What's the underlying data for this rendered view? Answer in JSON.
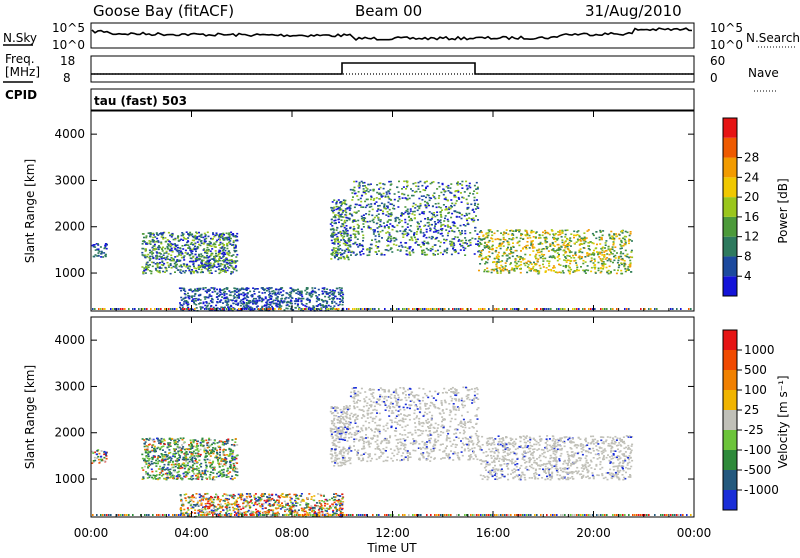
{
  "header": {
    "station": "Goose Bay (fitACF)",
    "beam": "Beam 00",
    "date": "31/Aug/2010"
  },
  "top_panels": {
    "nsky_label": "N.Sky",
    "nsearch_label": "N.Search",
    "noise_ticks_left": [
      "10^5",
      "10^0"
    ],
    "noise_ticks_right": [
      "10^5",
      "10^0"
    ],
    "freq_label_line1": "Freq.",
    "freq_label_line2": "[MHz]",
    "freq_ticks": [
      "18",
      "8"
    ],
    "nave_label": "Nave",
    "nave_ticks": [
      "60",
      "0"
    ],
    "cpid_label": "CPID",
    "cpid_text": "tau (fast) 503"
  },
  "chart_data": [
    {
      "type": "heatmap",
      "title": "",
      "ylabel": "Slant Range [km]",
      "xlabel": "",
      "ylim": [
        180,
        4500
      ],
      "yticks": [
        1000,
        2000,
        3000,
        4000
      ],
      "x_ticks": [
        "00:00",
        "04:00",
        "08:00",
        "12:00",
        "16:00",
        "20:00",
        "00:00"
      ],
      "colorbar": {
        "label": "Power [dB]",
        "ticks": [
          "4",
          "8",
          "12",
          "16",
          "20",
          "24",
          "28"
        ],
        "colors": [
          "#1414d8",
          "#1c4a9e",
          "#2e7a5e",
          "#4c9a3a",
          "#9ac61c",
          "#f0c800",
          "#f29b00",
          "#ee5a00",
          "#e61414"
        ]
      },
      "echo_regions": [
        {
          "t_start": 0.0,
          "t_end": 0.6,
          "r_min": 1350,
          "r_max": 1650,
          "level": "low"
        },
        {
          "t_start": 2.0,
          "t_end": 5.8,
          "r_min": 1000,
          "r_max": 1900,
          "level": "medium"
        },
        {
          "t_start": 3.5,
          "t_end": 10.0,
          "r_min": 200,
          "r_max": 700,
          "level": "low"
        },
        {
          "t_start": 9.5,
          "t_end": 10.3,
          "r_min": 1300,
          "r_max": 2600,
          "level": "medium"
        },
        {
          "t_start": 10.3,
          "t_end": 15.4,
          "r_min": 1400,
          "r_max": 3000,
          "level": "medium"
        },
        {
          "t_start": 15.4,
          "t_end": 21.5,
          "r_min": 1000,
          "r_max": 1950,
          "level": "high"
        }
      ]
    },
    {
      "type": "heatmap",
      "title": "",
      "ylabel": "Slant Range [km]",
      "xlabel": "Time UT",
      "ylim": [
        180,
        4500
      ],
      "yticks": [
        1000,
        2000,
        3000,
        4000
      ],
      "x_ticks": [
        "00:00",
        "04:00",
        "08:00",
        "12:00",
        "16:00",
        "20:00",
        "00:00"
      ],
      "colorbar": {
        "label": "Velocity [m s⁻¹]",
        "ticks": [
          "1000",
          "500",
          "100",
          "25",
          "-25",
          "-100",
          "-500",
          "-1000"
        ],
        "colors": [
          "#1a2ed8",
          "#24597e",
          "#2e8a3a",
          "#6cc43a",
          "#c0c0b8",
          "#f0b400",
          "#f08000",
          "#f04a00",
          "#e61414"
        ]
      },
      "echo_regions": [
        {
          "t_start": 0.0,
          "t_end": 0.6,
          "r_min": 1350,
          "r_max": 1650,
          "level": "mixed"
        },
        {
          "t_start": 2.0,
          "t_end": 5.8,
          "r_min": 1000,
          "r_max": 1900,
          "level": "negative"
        },
        {
          "t_start": 3.5,
          "t_end": 10.0,
          "r_min": 200,
          "r_max": 700,
          "level": "mixed"
        },
        {
          "t_start": 9.5,
          "t_end": 10.3,
          "r_min": 1300,
          "r_max": 2600,
          "level": "ground"
        },
        {
          "t_start": 10.3,
          "t_end": 15.4,
          "r_min": 1400,
          "r_max": 3000,
          "level": "ground"
        },
        {
          "t_start": 15.4,
          "t_end": 21.5,
          "r_min": 1000,
          "r_max": 1950,
          "level": "ground"
        }
      ]
    }
  ]
}
